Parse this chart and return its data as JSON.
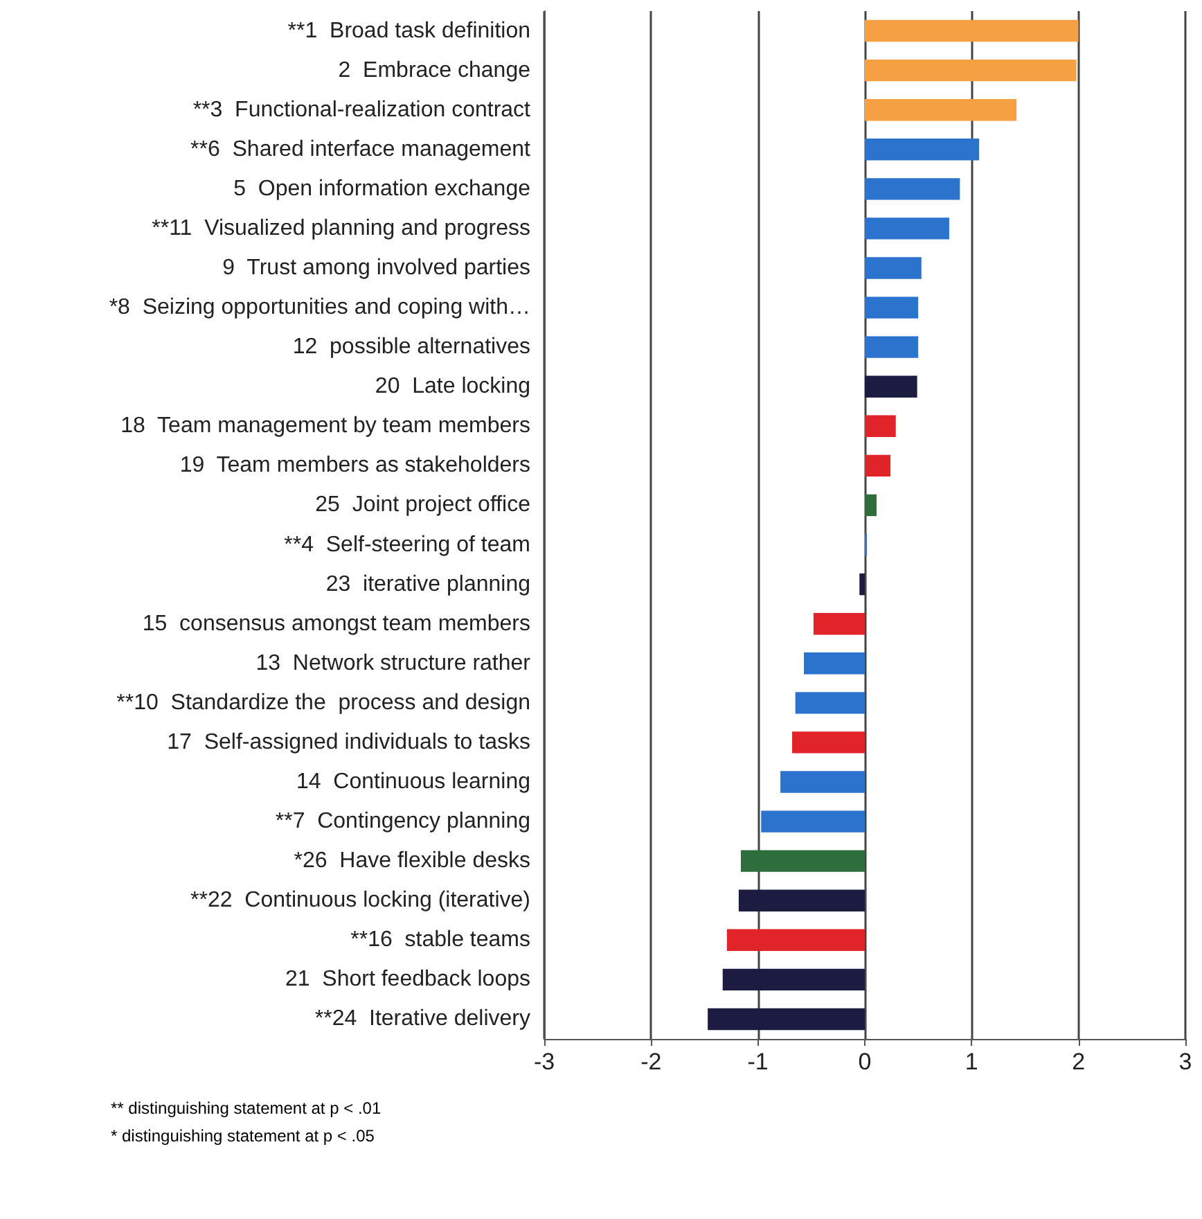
{
  "chart_data": {
    "type": "bar",
    "orientation": "horizontal",
    "categories": [
      "**1  Broad task definition",
      "2  Embrace change",
      "**3  Functional-realization contract",
      "**6  Shared interface management",
      "5  Open information exchange",
      "**11  Visualized planning and progress",
      "9  Trust among involved parties",
      "*8  Seizing opportunities and coping with…",
      "12  possible alternatives",
      "20  Late locking",
      "18  Team management by team members",
      "19  Team members as stakeholders",
      "25  Joint project office",
      "**4  Self-steering of team",
      "23  iterative planning",
      "15  consensus amongst team members",
      "13  Network structure rather",
      "**10  Standardize the  process and design",
      "17  Self-assigned individuals to tasks",
      "14  Continuous learning",
      "**7  Contingency planning",
      "*26  Have flexible desks",
      "**22  Continuous locking (iterative)",
      "**16  stable teams",
      "21  Short feedback loops",
      "**24  Iterative delivery"
    ],
    "values": [
      2.0,
      1.98,
      1.42,
      1.07,
      0.89,
      0.79,
      0.53,
      0.5,
      0.5,
      0.49,
      0.29,
      0.24,
      0.11,
      0.02,
      -0.05,
      -0.48,
      -0.57,
      -0.65,
      -0.68,
      -0.79,
      -0.97,
      -1.16,
      -1.18,
      -1.29,
      -1.33,
      -1.47
    ],
    "colors": [
      "#f5a043",
      "#f5a043",
      "#f5a043",
      "#2b73cc",
      "#2b73cc",
      "#2b73cc",
      "#2b73cc",
      "#2b73cc",
      "#2b73cc",
      "#1c1c42",
      "#e0242a",
      "#e0242a",
      "#2d6e3c",
      "#2b73cc",
      "#1c1c42",
      "#e0242a",
      "#2b73cc",
      "#2b73cc",
      "#e0242a",
      "#2b73cc",
      "#2b73cc",
      "#2d6e3c",
      "#1c1c42",
      "#e0242a",
      "#1c1c42",
      "#1c1c42"
    ],
    "xlim": [
      -3,
      3
    ],
    "xticks": [
      -3,
      -2,
      -1,
      0,
      1,
      2,
      3
    ],
    "grid": "x",
    "annotations": [
      "** distinguishing statement at p < .01",
      "* distinguishing statement at p < .05"
    ]
  }
}
